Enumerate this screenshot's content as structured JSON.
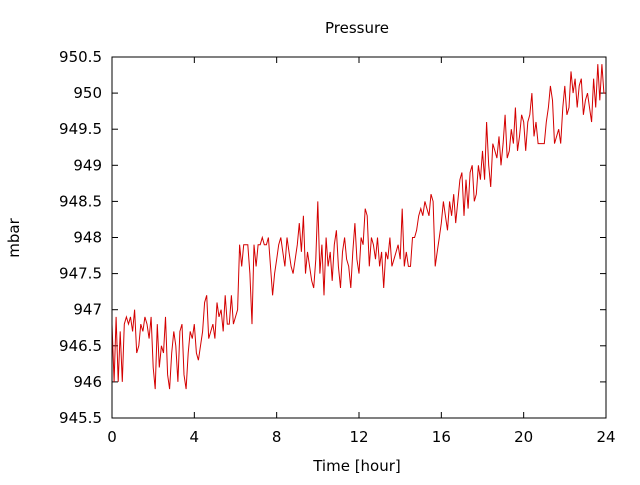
{
  "chart_data": {
    "type": "line",
    "title": "Pressure",
    "xlabel": "Time [hour]",
    "ylabel": "mbar",
    "xlim": [
      0,
      24
    ],
    "ylim": [
      945.5,
      950.5
    ],
    "x_ticks": [
      0,
      4,
      8,
      12,
      16,
      20,
      24
    ],
    "y_ticks": [
      945.5,
      946,
      946.5,
      947,
      947.5,
      948,
      948.5,
      949,
      949.5,
      950,
      950.5
    ],
    "x_tick_labels": [
      "0",
      "4",
      "8",
      "12",
      "16",
      "20",
      "24"
    ],
    "y_tick_labels": [
      "945.5",
      "946",
      "946.5",
      "947",
      "947.5",
      "948",
      "948.5",
      "949",
      "949.5",
      "950",
      "950.5"
    ],
    "grid": false,
    "legend": "none",
    "series": [
      {
        "color": "#d40000",
        "points": [
          [
            0.0,
            946.8
          ],
          [
            0.1,
            946.0
          ],
          [
            0.2,
            946.9
          ],
          [
            0.3,
            946.0
          ],
          [
            0.4,
            946.7
          ],
          [
            0.5,
            946.0
          ],
          [
            0.6,
            946.8
          ],
          [
            0.7,
            946.9
          ],
          [
            0.8,
            946.8
          ],
          [
            0.9,
            946.9
          ],
          [
            1.0,
            946.7
          ],
          [
            1.1,
            947.0
          ],
          [
            1.2,
            946.4
          ],
          [
            1.3,
            946.5
          ],
          [
            1.4,
            946.8
          ],
          [
            1.5,
            946.7
          ],
          [
            1.6,
            946.9
          ],
          [
            1.7,
            946.8
          ],
          [
            1.8,
            946.6
          ],
          [
            1.9,
            946.9
          ],
          [
            2.0,
            946.2
          ],
          [
            2.1,
            945.9
          ],
          [
            2.2,
            946.8
          ],
          [
            2.3,
            946.2
          ],
          [
            2.4,
            946.5
          ],
          [
            2.5,
            946.4
          ],
          [
            2.6,
            946.9
          ],
          [
            2.7,
            946.1
          ],
          [
            2.8,
            945.9
          ],
          [
            2.9,
            946.4
          ],
          [
            3.0,
            946.7
          ],
          [
            3.1,
            946.5
          ],
          [
            3.2,
            946.0
          ],
          [
            3.3,
            946.7
          ],
          [
            3.4,
            946.8
          ],
          [
            3.5,
            946.1
          ],
          [
            3.6,
            945.9
          ],
          [
            3.7,
            946.4
          ],
          [
            3.8,
            946.7
          ],
          [
            3.9,
            946.6
          ],
          [
            4.0,
            946.8
          ],
          [
            4.1,
            946.4
          ],
          [
            4.2,
            946.3
          ],
          [
            4.3,
            946.5
          ],
          [
            4.4,
            946.7
          ],
          [
            4.5,
            947.1
          ],
          [
            4.6,
            947.2
          ],
          [
            4.7,
            946.6
          ],
          [
            4.8,
            946.7
          ],
          [
            4.9,
            946.8
          ],
          [
            5.0,
            946.6
          ],
          [
            5.1,
            947.1
          ],
          [
            5.2,
            946.9
          ],
          [
            5.3,
            947.0
          ],
          [
            5.4,
            946.7
          ],
          [
            5.5,
            947.2
          ],
          [
            5.6,
            946.8
          ],
          [
            5.7,
            946.8
          ],
          [
            5.8,
            947.2
          ],
          [
            5.9,
            946.8
          ],
          [
            6.0,
            946.9
          ],
          [
            6.1,
            947.0
          ],
          [
            6.2,
            947.9
          ],
          [
            6.3,
            947.6
          ],
          [
            6.4,
            947.9
          ],
          [
            6.5,
            947.9
          ],
          [
            6.6,
            947.9
          ],
          [
            6.7,
            947.5
          ],
          [
            6.8,
            946.8
          ],
          [
            6.9,
            947.9
          ],
          [
            7.0,
            947.6
          ],
          [
            7.1,
            947.9
          ],
          [
            7.2,
            947.9
          ],
          [
            7.3,
            948.0
          ],
          [
            7.4,
            947.9
          ],
          [
            7.5,
            947.9
          ],
          [
            7.6,
            948.0
          ],
          [
            7.7,
            947.6
          ],
          [
            7.8,
            947.2
          ],
          [
            7.9,
            947.5
          ],
          [
            8.0,
            947.7
          ],
          [
            8.1,
            947.9
          ],
          [
            8.2,
            948.0
          ],
          [
            8.3,
            947.8
          ],
          [
            8.4,
            947.6
          ],
          [
            8.5,
            948.0
          ],
          [
            8.6,
            947.8
          ],
          [
            8.7,
            947.6
          ],
          [
            8.8,
            947.5
          ],
          [
            8.9,
            947.7
          ],
          [
            9.0,
            947.9
          ],
          [
            9.1,
            948.2
          ],
          [
            9.2,
            947.8
          ],
          [
            9.3,
            948.3
          ],
          [
            9.4,
            947.5
          ],
          [
            9.5,
            947.8
          ],
          [
            9.6,
            947.6
          ],
          [
            9.7,
            947.4
          ],
          [
            9.8,
            947.3
          ],
          [
            9.9,
            947.7
          ],
          [
            10.0,
            948.5
          ],
          [
            10.1,
            947.5
          ],
          [
            10.2,
            947.9
          ],
          [
            10.3,
            947.2
          ],
          [
            10.4,
            948.0
          ],
          [
            10.5,
            947.6
          ],
          [
            10.6,
            947.8
          ],
          [
            10.7,
            947.4
          ],
          [
            10.8,
            947.9
          ],
          [
            10.9,
            948.1
          ],
          [
            11.0,
            947.6
          ],
          [
            11.1,
            947.3
          ],
          [
            11.2,
            947.8
          ],
          [
            11.3,
            948.0
          ],
          [
            11.4,
            947.7
          ],
          [
            11.5,
            947.6
          ],
          [
            11.6,
            947.3
          ],
          [
            11.7,
            947.8
          ],
          [
            11.8,
            948.2
          ],
          [
            11.9,
            947.7
          ],
          [
            12.0,
            947.5
          ],
          [
            12.1,
            948.0
          ],
          [
            12.2,
            947.9
          ],
          [
            12.3,
            948.4
          ],
          [
            12.4,
            948.3
          ],
          [
            12.5,
            947.6
          ],
          [
            12.6,
            948.0
          ],
          [
            12.7,
            947.9
          ],
          [
            12.8,
            947.7
          ],
          [
            12.9,
            948.0
          ],
          [
            13.0,
            947.6
          ],
          [
            13.1,
            947.8
          ],
          [
            13.2,
            947.3
          ],
          [
            13.3,
            947.8
          ],
          [
            13.4,
            947.7
          ],
          [
            13.5,
            948.0
          ],
          [
            13.6,
            947.6
          ],
          [
            13.7,
            947.7
          ],
          [
            13.8,
            947.8
          ],
          [
            13.9,
            947.9
          ],
          [
            14.0,
            947.7
          ],
          [
            14.1,
            948.4
          ],
          [
            14.2,
            947.6
          ],
          [
            14.3,
            947.8
          ],
          [
            14.4,
            947.6
          ],
          [
            14.5,
            947.6
          ],
          [
            14.6,
            948.0
          ],
          [
            14.7,
            948.0
          ],
          [
            14.8,
            948.1
          ],
          [
            14.9,
            948.3
          ],
          [
            15.0,
            948.4
          ],
          [
            15.1,
            948.3
          ],
          [
            15.2,
            948.5
          ],
          [
            15.3,
            948.4
          ],
          [
            15.4,
            948.3
          ],
          [
            15.5,
            948.6
          ],
          [
            15.6,
            948.5
          ],
          [
            15.7,
            947.6
          ],
          [
            15.8,
            947.8
          ],
          [
            15.9,
            948.0
          ],
          [
            16.0,
            948.2
          ],
          [
            16.1,
            948.5
          ],
          [
            16.2,
            948.3
          ],
          [
            16.3,
            948.1
          ],
          [
            16.4,
            948.5
          ],
          [
            16.5,
            948.3
          ],
          [
            16.6,
            948.6
          ],
          [
            16.7,
            948.2
          ],
          [
            16.8,
            948.5
          ],
          [
            16.9,
            948.8
          ],
          [
            17.0,
            948.9
          ],
          [
            17.1,
            948.3
          ],
          [
            17.2,
            948.8
          ],
          [
            17.3,
            948.4
          ],
          [
            17.4,
            948.9
          ],
          [
            17.5,
            949.0
          ],
          [
            17.6,
            948.5
          ],
          [
            17.7,
            948.6
          ],
          [
            17.8,
            949.0
          ],
          [
            17.9,
            948.8
          ],
          [
            18.0,
            949.2
          ],
          [
            18.1,
            948.8
          ],
          [
            18.2,
            949.6
          ],
          [
            18.3,
            949.0
          ],
          [
            18.4,
            948.7
          ],
          [
            18.5,
            949.3
          ],
          [
            18.6,
            949.2
          ],
          [
            18.7,
            949.1
          ],
          [
            18.8,
            949.4
          ],
          [
            18.9,
            949.0
          ],
          [
            19.0,
            949.3
          ],
          [
            19.1,
            949.7
          ],
          [
            19.2,
            949.1
          ],
          [
            19.3,
            949.2
          ],
          [
            19.4,
            949.5
          ],
          [
            19.5,
            949.3
          ],
          [
            19.6,
            949.8
          ],
          [
            19.7,
            949.2
          ],
          [
            19.8,
            949.4
          ],
          [
            19.9,
            949.7
          ],
          [
            20.0,
            949.6
          ],
          [
            20.1,
            949.2
          ],
          [
            20.2,
            949.6
          ],
          [
            20.3,
            949.7
          ],
          [
            20.4,
            950.0
          ],
          [
            20.5,
            949.4
          ],
          [
            20.6,
            949.6
          ],
          [
            20.7,
            949.3
          ],
          [
            20.8,
            949.3
          ],
          [
            20.9,
            949.3
          ],
          [
            21.0,
            949.3
          ],
          [
            21.1,
            949.6
          ],
          [
            21.2,
            949.8
          ],
          [
            21.3,
            950.1
          ],
          [
            21.4,
            949.9
          ],
          [
            21.5,
            949.3
          ],
          [
            21.6,
            949.4
          ],
          [
            21.7,
            949.5
          ],
          [
            21.8,
            949.3
          ],
          [
            21.9,
            949.8
          ],
          [
            22.0,
            950.1
          ],
          [
            22.1,
            949.7
          ],
          [
            22.2,
            949.8
          ],
          [
            22.3,
            950.3
          ],
          [
            22.4,
            950.0
          ],
          [
            22.5,
            950.2
          ],
          [
            22.6,
            949.8
          ],
          [
            22.7,
            950.1
          ],
          [
            22.8,
            950.2
          ],
          [
            22.9,
            949.7
          ],
          [
            23.0,
            949.9
          ],
          [
            23.1,
            950.0
          ],
          [
            23.2,
            949.8
          ],
          [
            23.3,
            949.6
          ],
          [
            23.4,
            950.2
          ],
          [
            23.5,
            949.8
          ],
          [
            23.6,
            950.4
          ],
          [
            23.7,
            949.9
          ],
          [
            23.8,
            950.4
          ],
          [
            23.9,
            950.0
          ],
          [
            24.0,
            950.0
          ]
        ]
      }
    ]
  }
}
